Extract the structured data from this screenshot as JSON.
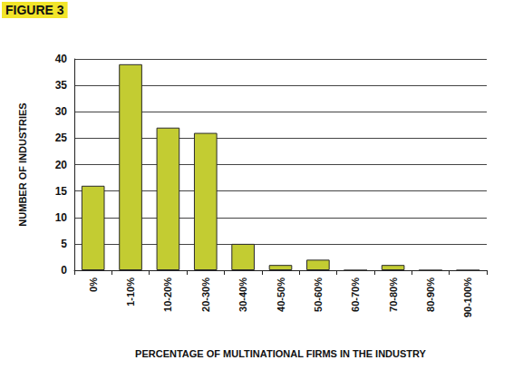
{
  "chart_data": {
    "type": "bar",
    "title": "FIGURE 3",
    "x_label": "PERCENTAGE OF MULTINATIONAL FIRMS IN THE INDUSTRY",
    "y_label": "NUMBER OF INDUSTRIES",
    "categories": [
      "0%",
      "1-10%",
      "10-20%",
      "20-30%",
      "30-40%",
      "40-50%",
      "50-60%",
      "60-70%",
      "70-80%",
      "80-90%",
      "90-100%"
    ],
    "values": [
      16,
      39,
      27,
      26,
      5,
      1,
      2,
      0,
      1,
      0,
      0
    ],
    "color": "#c3cc32",
    "ylim": [
      0,
      40
    ],
    "yticks": [
      0,
      5,
      10,
      15,
      20,
      25,
      30,
      35,
      40
    ],
    "grid": true
  }
}
